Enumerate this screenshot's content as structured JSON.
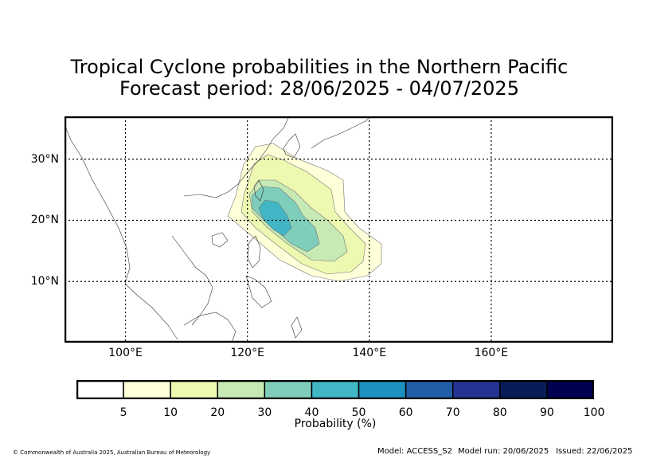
{
  "title": {
    "line1": "Tropical Cyclone probabilities in the Northern Pacific",
    "line2": "Forecast period: 28/06/2025 - 04/07/2025"
  },
  "map": {
    "lon_range": [
      90,
      180
    ],
    "lat_range": [
      0,
      37
    ],
    "lat_ticks": [
      {
        "value": 30,
        "label": "30°N"
      },
      {
        "value": 20,
        "label": "20°N"
      },
      {
        "value": 10,
        "label": "10°N"
      }
    ],
    "lon_ticks": [
      {
        "value": 100,
        "label": "100°E"
      },
      {
        "value": 120,
        "label": "120°E"
      },
      {
        "value": 140,
        "label": "140°E"
      },
      {
        "value": 160,
        "label": "160°E"
      }
    ],
    "gridlines": "dotted",
    "probability_regions": [
      {
        "level": 5,
        "color": "#ffffd9",
        "center_lon": 135,
        "center_lat": 22
      },
      {
        "level": 10,
        "color": "#edf8b1",
        "center_lon": 130,
        "center_lat": 20
      },
      {
        "level": 20,
        "color": "#c7e9b4",
        "center_lon": 127,
        "center_lat": 18.5
      },
      {
        "level": 30,
        "color": "#7fcdbb",
        "center_lon": 126,
        "center_lat": 18
      },
      {
        "level": 40,
        "color": "#41b6c4",
        "center_lon": 124.5,
        "center_lat": 19.5
      }
    ]
  },
  "colorbar": {
    "colors": [
      "#ffffff",
      "#ffffd9",
      "#edf8b1",
      "#c7e9b4",
      "#7fcdbb",
      "#41b6c4",
      "#1d91c0",
      "#225ea8",
      "#253494",
      "#081d58",
      "#000050"
    ],
    "ticks": [
      "5",
      "10",
      "20",
      "30",
      "40",
      "50",
      "60",
      "70",
      "80",
      "90",
      "100"
    ],
    "label": "Probability (%)"
  },
  "footer": {
    "copyright": "© Commonwealth of Australia 2025, Australian Bureau of Meteorology",
    "model": "Model: ACCESS_S2",
    "model_run": "Model run: 20/06/2025",
    "issued": "Issued: 22/06/2025"
  }
}
